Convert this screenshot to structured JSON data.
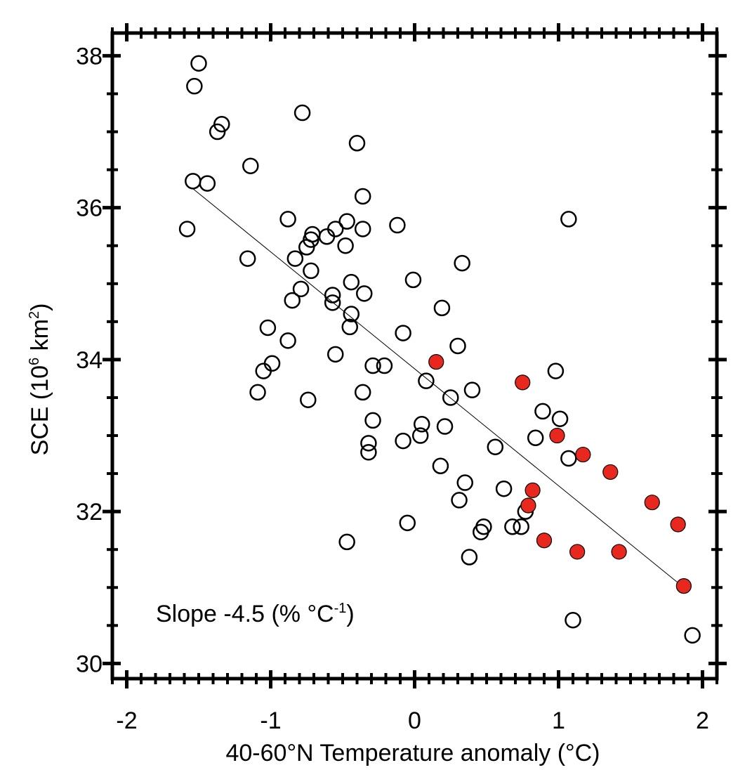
{
  "chart_data": {
    "type": "scatter",
    "xlabel": "40-60°N Temperature anomaly (°C)",
    "ylabel": {
      "prefix": "SCE (10",
      "sup1": "6",
      "middle": " km",
      "sup2": "2",
      "suffix": ")"
    },
    "annotation": {
      "prefix": "Slope -4.5 (% °C",
      "sup": "-1",
      "suffix": ")"
    },
    "xlim": [
      -2.1,
      2.1
    ],
    "ylim": [
      29.8,
      38.3
    ],
    "xticks": [
      -2,
      -1,
      0,
      1,
      2
    ],
    "xtick_labels": [
      "-2",
      "-1",
      "0",
      "1",
      "2"
    ],
    "yticks": [
      30,
      32,
      34,
      36,
      38
    ],
    "ytick_labels": [
      "30",
      "32",
      "34",
      "36",
      "38"
    ],
    "grid": false,
    "colors": {
      "highlight": "#e8281e",
      "marker_edge": "#000000"
    },
    "fit_line": {
      "x": [
        -1.54,
        1.87
      ],
      "y": [
        36.25,
        31.0
      ]
    },
    "series": [
      {
        "marker": "open-circle",
        "points": [
          [
            -1.5,
            37.9
          ],
          [
            -1.53,
            37.6
          ],
          [
            -1.34,
            37.1
          ],
          [
            -1.37,
            37.0
          ],
          [
            -0.78,
            37.25
          ],
          [
            -0.4,
            36.85
          ],
          [
            -1.14,
            36.55
          ],
          [
            -1.54,
            36.35
          ],
          [
            -1.44,
            36.32
          ],
          [
            -1.58,
            35.72
          ],
          [
            -0.36,
            36.15
          ],
          [
            -0.88,
            35.85
          ],
          [
            -0.47,
            35.82
          ],
          [
            -0.55,
            35.72
          ],
          [
            -0.36,
            35.72
          ],
          [
            -0.12,
            35.77
          ],
          [
            1.07,
            35.85
          ],
          [
            -0.71,
            35.65
          ],
          [
            -0.72,
            35.58
          ],
          [
            -0.61,
            35.62
          ],
          [
            -0.75,
            35.48
          ],
          [
            -0.48,
            35.5
          ],
          [
            -1.16,
            35.33
          ],
          [
            -0.83,
            35.33
          ],
          [
            -0.72,
            35.17
          ],
          [
            0.33,
            35.27
          ],
          [
            -0.44,
            35.02
          ],
          [
            -0.01,
            35.05
          ],
          [
            -0.79,
            34.93
          ],
          [
            -0.57,
            34.85
          ],
          [
            -0.35,
            34.87
          ],
          [
            -0.85,
            34.78
          ],
          [
            -0.57,
            34.75
          ],
          [
            0.19,
            34.68
          ],
          [
            -0.44,
            34.6
          ],
          [
            -1.02,
            34.42
          ],
          [
            -0.45,
            34.43
          ],
          [
            -0.08,
            34.35
          ],
          [
            -0.88,
            34.25
          ],
          [
            0.3,
            34.18
          ],
          [
            -0.55,
            34.07
          ],
          [
            -0.29,
            33.92
          ],
          [
            -0.21,
            33.92
          ],
          [
            -0.99,
            33.95
          ],
          [
            -1.05,
            33.85
          ],
          [
            0.98,
            33.85
          ],
          [
            0.08,
            33.72
          ],
          [
            -1.09,
            33.57
          ],
          [
            -0.36,
            33.57
          ],
          [
            0.4,
            33.6
          ],
          [
            0.25,
            33.5
          ],
          [
            -0.74,
            33.47
          ],
          [
            0.89,
            33.32
          ],
          [
            1.01,
            33.22
          ],
          [
            -0.29,
            33.2
          ],
          [
            0.05,
            33.15
          ],
          [
            0.21,
            33.12
          ],
          [
            0.04,
            33.0
          ],
          [
            -0.08,
            32.93
          ],
          [
            0.84,
            32.97
          ],
          [
            -0.32,
            32.9
          ],
          [
            -0.32,
            32.78
          ],
          [
            0.56,
            32.85
          ],
          [
            1.07,
            32.7
          ],
          [
            0.18,
            32.6
          ],
          [
            0.35,
            32.38
          ],
          [
            0.62,
            32.3
          ],
          [
            0.31,
            32.15
          ],
          [
            0.77,
            32.0
          ],
          [
            -0.05,
            31.85
          ],
          [
            0.48,
            31.8
          ],
          [
            0.68,
            31.8
          ],
          [
            0.74,
            31.8
          ],
          [
            0.46,
            31.73
          ],
          [
            -0.47,
            31.6
          ],
          [
            0.38,
            31.4
          ],
          [
            1.1,
            30.57
          ],
          [
            1.93,
            30.37
          ]
        ]
      },
      {
        "marker": "filled-circle",
        "points": [
          [
            0.15,
            33.97
          ],
          [
            0.75,
            33.7
          ],
          [
            0.99,
            33.0
          ],
          [
            1.17,
            32.75
          ],
          [
            1.36,
            32.52
          ],
          [
            0.82,
            32.28
          ],
          [
            0.79,
            32.08
          ],
          [
            1.65,
            32.12
          ],
          [
            1.83,
            31.83
          ],
          [
            0.9,
            31.62
          ],
          [
            1.13,
            31.47
          ],
          [
            1.42,
            31.47
          ],
          [
            1.87,
            31.02
          ]
        ]
      }
    ]
  }
}
